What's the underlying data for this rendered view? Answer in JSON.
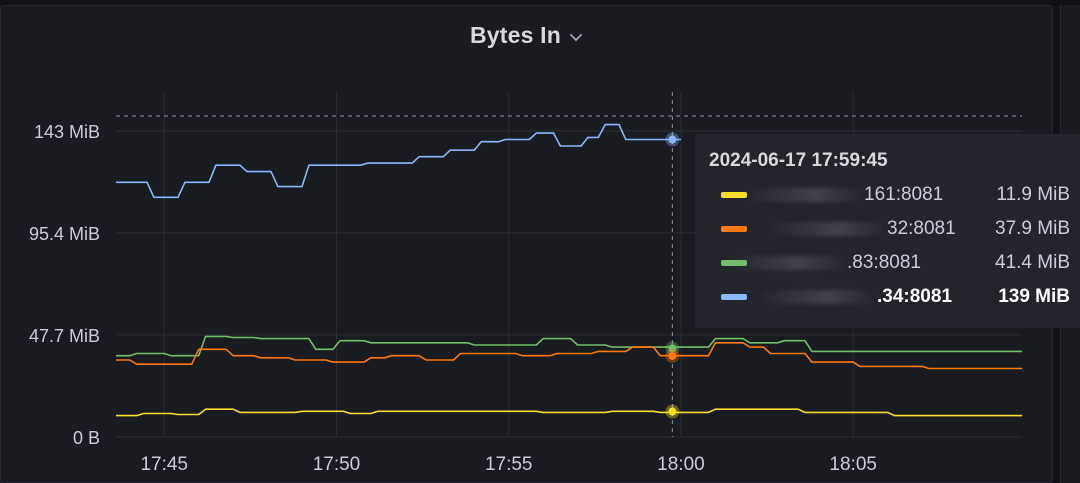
{
  "panel": {
    "title": "Bytes In"
  },
  "tooltip": {
    "time": "2024-06-17 17:59:45",
    "rows": [
      {
        "name": "161:8081",
        "value": "11.9 MiB",
        "color": "#fade2a"
      },
      {
        "name": "32:8081",
        "value": "37.9 MiB",
        "color": "#ff780a"
      },
      {
        "name": ".83:8081",
        "value": "41.4 MiB",
        "color": "#73bf69"
      },
      {
        "name": ".34:8081",
        "value": "139 MiB",
        "color": "#8ab8ff"
      }
    ]
  },
  "chart_data": {
    "type": "line",
    "y_unit": "MiB",
    "y_ticks": [
      "0 B",
      "47.7 MiB",
      "95.4 MiB",
      "143 MiB"
    ],
    "y_tick_values": [
      0,
      47.7,
      95.4,
      143
    ],
    "ylim": [
      0,
      150
    ],
    "x_ticks": [
      "17:45",
      "17:50",
      "17:55",
      "18:00",
      "18:05"
    ],
    "x_tick_values": [
      45,
      50,
      55,
      60,
      65
    ],
    "xlim": [
      43.6,
      69.9
    ],
    "crosshair_x": 59.75,
    "crosshair_y": 150,
    "grid": true,
    "series": [
      {
        "color": "#8ab8ff",
        "x": [
          43.6,
          44.5,
          44.7,
          45.4,
          45.6,
          46.3,
          46.5,
          47.2,
          47.4,
          48.1,
          48.3,
          49.0,
          49.2,
          50.7,
          50.9,
          52.2,
          52.4,
          53.1,
          53.3,
          54.0,
          54.2,
          54.7,
          54.9,
          55.6,
          55.8,
          56.3,
          56.5,
          57.1,
          57.3,
          57.6,
          57.8,
          58.2,
          58.4,
          59.0,
          59.2,
          60.0
        ],
        "y": [
          119,
          119,
          112,
          112,
          119,
          119,
          127,
          127,
          124,
          124,
          117,
          117,
          127,
          127,
          128,
          128,
          131,
          131,
          134,
          134,
          138,
          138,
          139,
          139,
          142,
          142,
          136,
          136,
          140,
          140,
          146,
          146,
          139,
          139,
          139,
          139
        ]
      },
      {
        "color": "#73bf69",
        "x": [
          43.6,
          44.0,
          44.2,
          45.0,
          45.2,
          46.0,
          46.2,
          46.8,
          47.0,
          47.6,
          47.8,
          49.2,
          49.4,
          49.9,
          50.1,
          50.8,
          51.0,
          52.8,
          53.0,
          53.8,
          54.0,
          55.8,
          56.0,
          56.8,
          57.0,
          57.8,
          58.0,
          59.0,
          59.2,
          60.8,
          61.0,
          61.8,
          62.0,
          62.8,
          63.0,
          63.6,
          63.8,
          69.9
        ],
        "y": [
          38,
          38,
          39,
          39,
          38,
          38,
          47,
          47,
          46.5,
          46.5,
          46,
          46,
          41,
          41,
          45,
          45,
          44,
          44,
          44,
          44,
          43,
          43,
          46,
          46,
          43,
          43,
          42,
          42,
          42,
          42,
          46,
          46,
          44,
          44,
          45,
          45,
          40,
          40
        ]
      },
      {
        "color": "#ff780a",
        "x": [
          43.6,
          44.0,
          44.2,
          45.8,
          46.0,
          46.8,
          47.0,
          47.6,
          47.8,
          48.6,
          48.8,
          49.7,
          49.9,
          50.8,
          51.0,
          51.4,
          51.6,
          52.4,
          52.6,
          53.4,
          53.6,
          55.2,
          55.4,
          56.2,
          56.4,
          57.4,
          57.6,
          58.4,
          58.6,
          59.2,
          59.4,
          60.8,
          61.0,
          61.8,
          62.0,
          62.4,
          62.6,
          63.6,
          63.8,
          65.0,
          65.2,
          67.0,
          67.2,
          69.9
        ],
        "y": [
          36,
          36,
          34,
          34,
          41,
          41,
          38,
          38,
          37,
          37,
          36,
          36,
          35,
          35,
          37,
          37,
          38,
          38,
          36,
          36,
          39,
          39,
          38,
          38,
          39,
          39,
          40,
          40,
          42,
          42,
          38,
          38,
          44,
          44,
          42,
          42,
          39,
          39,
          35,
          35,
          33,
          33,
          32,
          32
        ]
      },
      {
        "color": "#fade2a",
        "x": [
          43.6,
          44.2,
          44.4,
          45.2,
          45.4,
          46.0,
          46.2,
          47.0,
          47.2,
          48.8,
          49.0,
          50.2,
          50.4,
          51.0,
          51.2,
          55.8,
          56.0,
          57.8,
          58.0,
          59.2,
          59.4,
          60.8,
          61.0,
          63.4,
          63.6,
          66.0,
          66.2,
          69.9
        ],
        "y": [
          10,
          10,
          11,
          11,
          10.5,
          10.5,
          13,
          13,
          11.5,
          11.5,
          12,
          12,
          11,
          11,
          12,
          12,
          11.5,
          11.5,
          12,
          12,
          11.5,
          11.5,
          13,
          13,
          11.5,
          11.5,
          10,
          10
        ]
      }
    ]
  }
}
